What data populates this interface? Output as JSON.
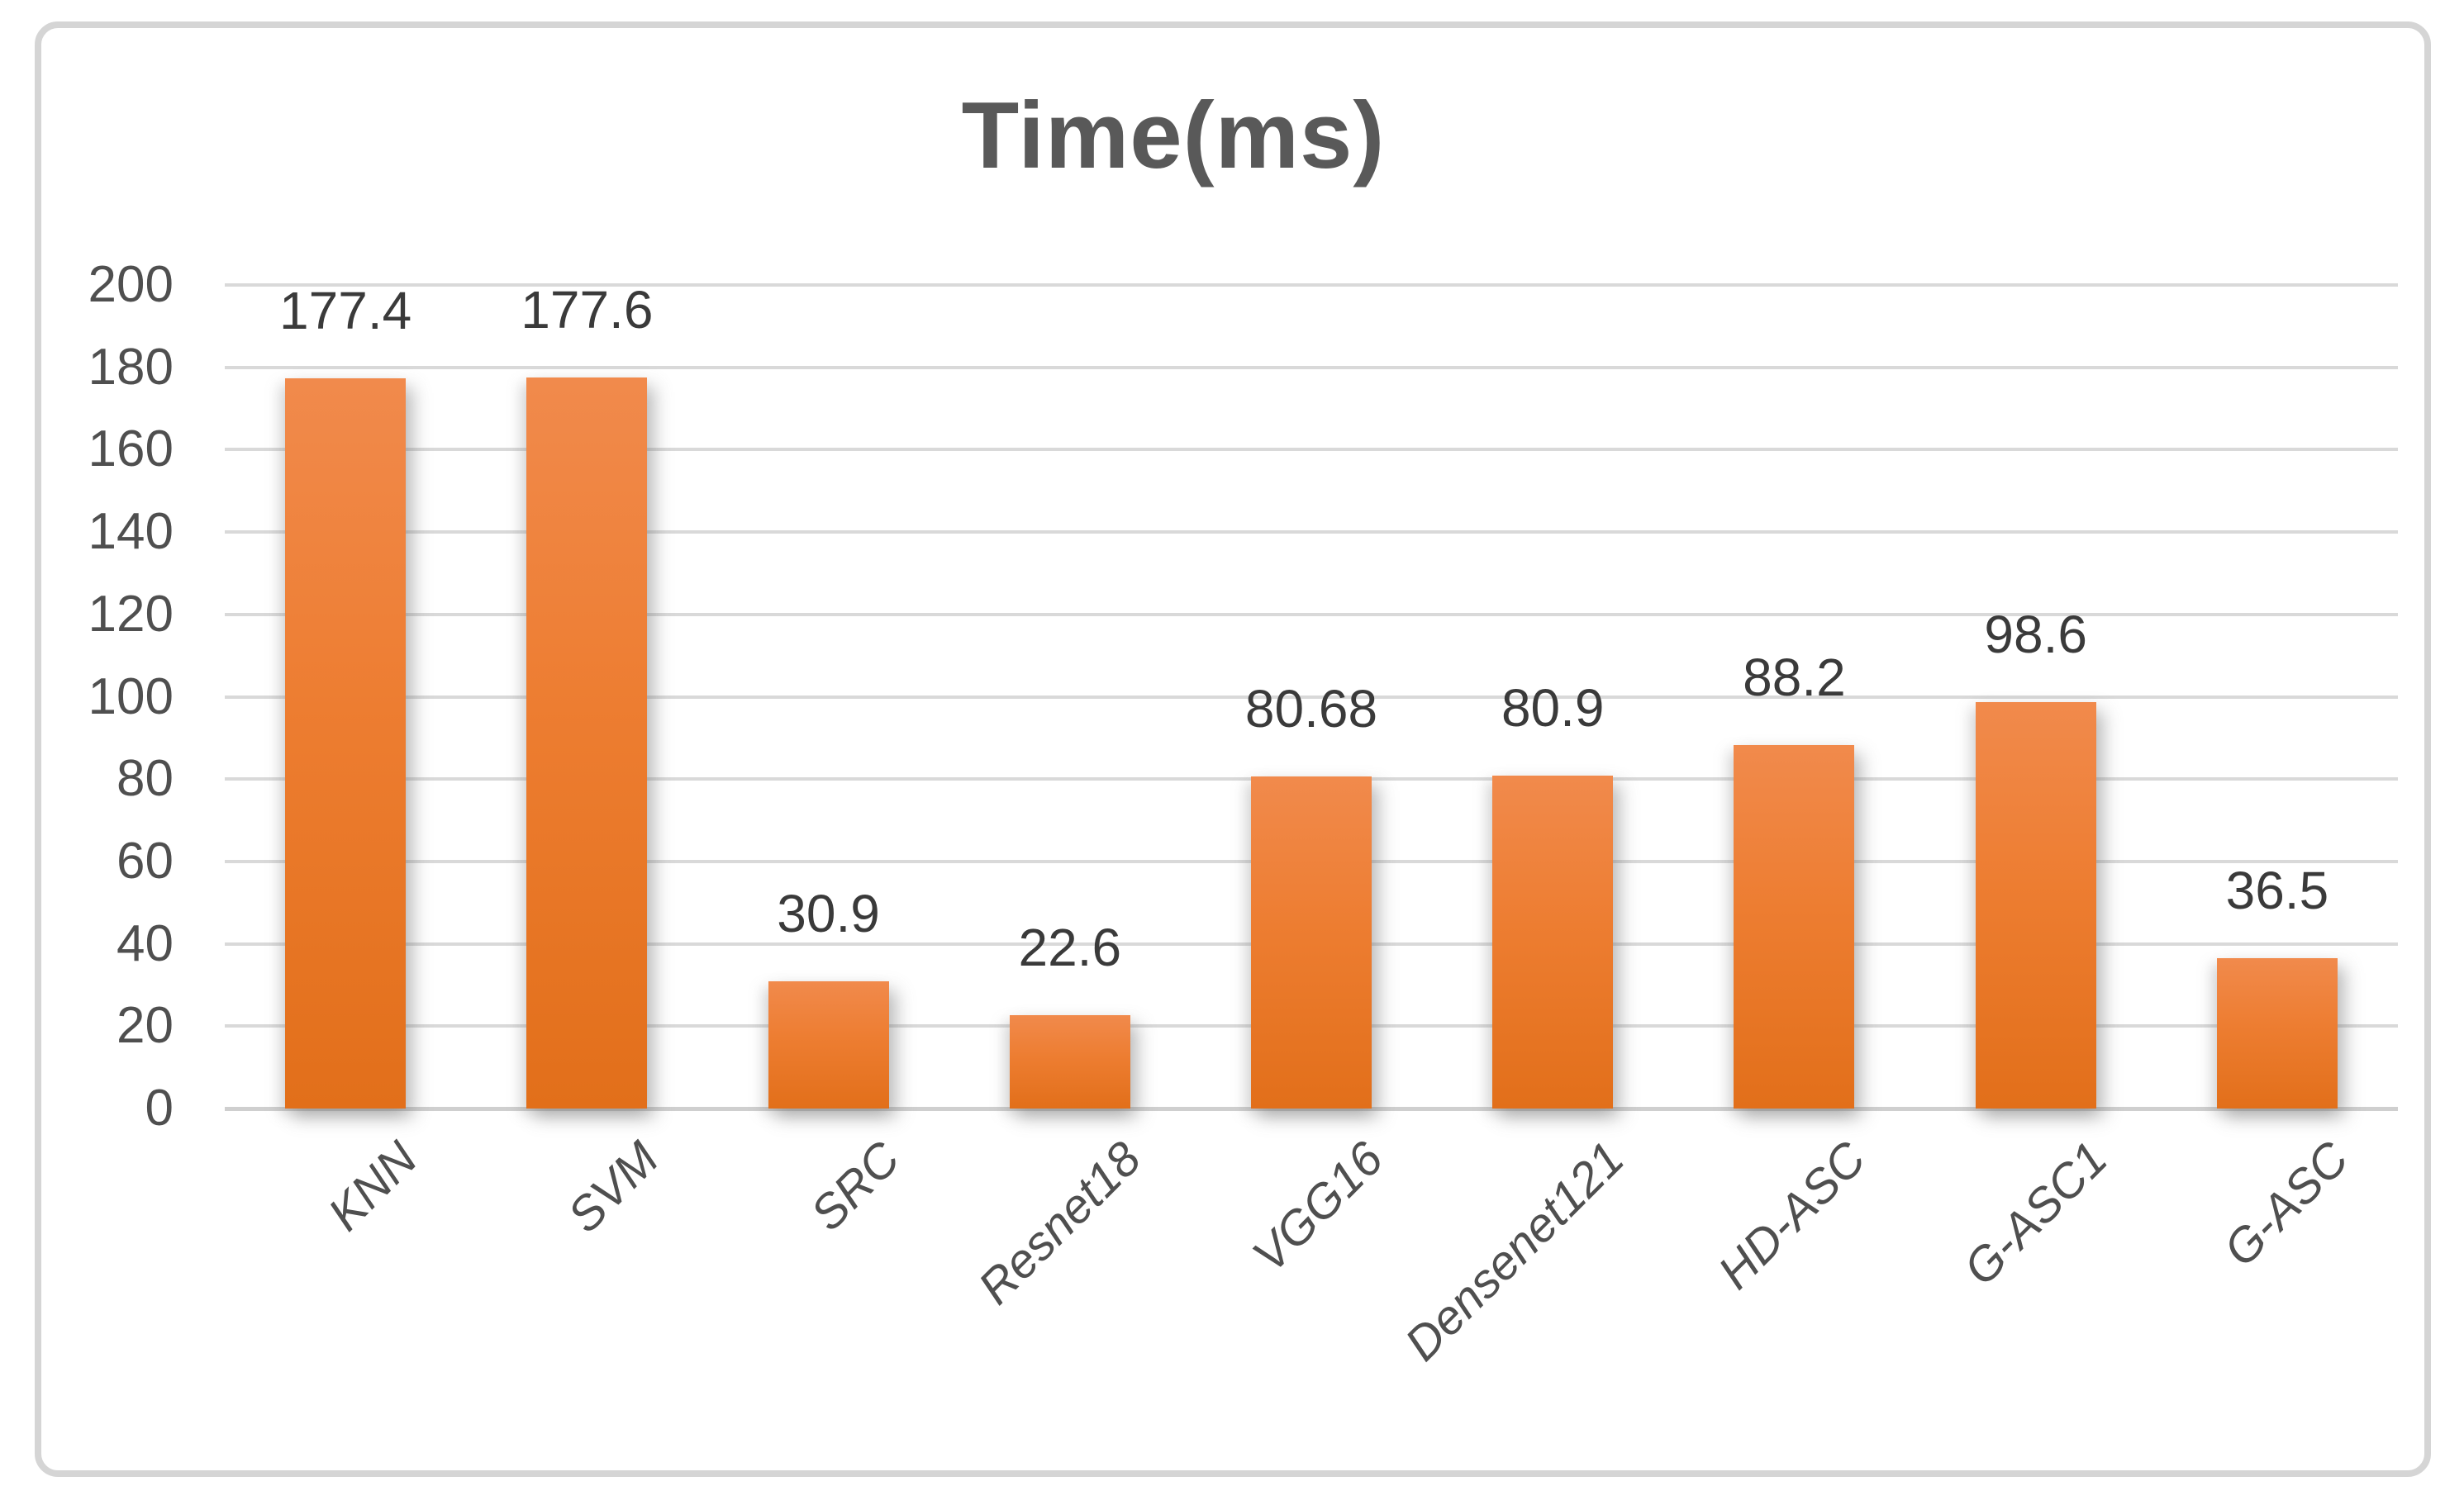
{
  "chart_data": {
    "type": "bar",
    "title": "Time(ms)",
    "categories": [
      "KNN",
      "SVM",
      "SRC",
      "Resnet18",
      "VGG16",
      "Densenet121",
      "HD-ASC",
      "G-ASC1",
      "G-ASC"
    ],
    "values": [
      177.4,
      177.6,
      30.9,
      22.6,
      80.68,
      80.9,
      88.2,
      98.6,
      36.5
    ],
    "data_labels": [
      "177.4",
      "177.6",
      "30.9",
      "22.6",
      "80.68",
      "80.9",
      "88.2",
      "98.6",
      "36.5"
    ],
    "xlabel": "",
    "ylabel": "",
    "ylim": [
      0,
      200
    ],
    "ytick_step": 20,
    "ytick_labels": [
      "0",
      "20",
      "40",
      "60",
      "80",
      "100",
      "120",
      "140",
      "160",
      "180",
      "200"
    ],
    "grid": "horizontal",
    "legend": "none",
    "x_labels_rotation_deg": -45,
    "colors": {
      "bar": "#ED7D31",
      "bar_gradient_top": "#F18A4C",
      "bar_gradient_bottom": "#E26F1A",
      "gridline": "#D9D9D9",
      "axis_line": "#CFCFCF",
      "title_text": "#595959",
      "tick_text": "#4F4F4F",
      "value_label_text": "#3A3A3A",
      "frame_border": "#D5D5D5",
      "background": "#FFFFFF"
    }
  }
}
